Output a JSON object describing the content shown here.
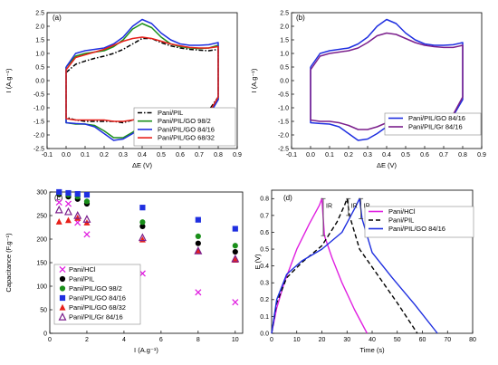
{
  "panels": [
    {
      "panel_label": "(a)",
      "type": "line",
      "xlabel": "ΔE (V)",
      "ylabel": "I (A.g⁻¹)",
      "xlim": [
        -0.1,
        0.9
      ],
      "ylim": [
        -2.5,
        2.5
      ],
      "xticks": [
        -0.1,
        0.0,
        0.1,
        0.2,
        0.3,
        0.4,
        0.5,
        0.6,
        0.7,
        0.8,
        0.9
      ],
      "xtick_labels": [
        "-0.1",
        "0.0",
        "0.1",
        "0.2",
        "0.3",
        "0.4",
        "0.5",
        "0.6",
        "0.7",
        "0.8",
        "0.9"
      ],
      "yticks": [
        -2.5,
        -2.0,
        -1.5,
        -1.0,
        -0.5,
        0.0,
        0.5,
        1.0,
        1.5,
        2.0,
        2.5
      ],
      "ytick_labels": [
        "-2.5",
        "-2.0",
        "-1.5",
        "-1.0",
        "-0.5",
        "0.0",
        "0.5",
        "1.0",
        "1.5",
        "2.0",
        "2.5"
      ],
      "legend_position": "lower-right",
      "series": [
        {
          "name": "Pani/PIL",
          "color": "#000000",
          "dash": "5 2 1.5 2",
          "anodic_x": [
            0,
            0.05,
            0.1,
            0.15,
            0.2,
            0.25,
            0.3,
            0.35,
            0.4,
            0.45,
            0.5,
            0.55,
            0.6,
            0.65,
            0.7,
            0.75,
            0.8
          ],
          "anodic_y": [
            0.3,
            0.6,
            0.72,
            0.82,
            0.9,
            1.0,
            1.15,
            1.35,
            1.55,
            1.55,
            1.4,
            1.28,
            1.2,
            1.15,
            1.12,
            1.1,
            1.15
          ],
          "cathodic_x": [
            0.8,
            0.75,
            0.7,
            0.65,
            0.6,
            0.55,
            0.5,
            0.45,
            0.4,
            0.35,
            0.3,
            0.25,
            0.2,
            0.15,
            0.1,
            0.05,
            0
          ],
          "cathodic_y": [
            -0.6,
            -1.1,
            -1.15,
            -1.15,
            -1.15,
            -1.15,
            -1.15,
            -1.2,
            -1.3,
            -1.45,
            -1.55,
            -1.5,
            -1.5,
            -1.5,
            -1.5,
            -1.45,
            -1.35
          ]
        },
        {
          "name": "Pani/PIL/GO 98/2",
          "color": "#1a8f1a",
          "dash": "",
          "anodic_x": [
            0,
            0.05,
            0.1,
            0.15,
            0.2,
            0.25,
            0.3,
            0.35,
            0.4,
            0.45,
            0.5,
            0.55,
            0.6,
            0.65,
            0.7,
            0.75,
            0.8
          ],
          "anodic_y": [
            0.5,
            0.9,
            1.0,
            1.05,
            1.1,
            1.25,
            1.5,
            1.9,
            2.1,
            1.95,
            1.6,
            1.35,
            1.25,
            1.2,
            1.18,
            1.2,
            1.3
          ],
          "cathodic_x": [
            0.8,
            0.75,
            0.7,
            0.65,
            0.6,
            0.55,
            0.5,
            0.45,
            0.4,
            0.35,
            0.3,
            0.25,
            0.2,
            0.15,
            0.1,
            0.05,
            0
          ],
          "cathodic_y": [
            -0.7,
            -1.25,
            -1.3,
            -1.3,
            -1.3,
            -1.35,
            -1.4,
            -1.5,
            -1.65,
            -1.9,
            -2.1,
            -2.1,
            -1.85,
            -1.65,
            -1.6,
            -1.6,
            -1.55
          ]
        },
        {
          "name": "Pani/PIL/GO 84/16",
          "color": "#1f2fe0",
          "dash": "",
          "anodic_x": [
            0,
            0.05,
            0.1,
            0.15,
            0.2,
            0.25,
            0.3,
            0.35,
            0.4,
            0.45,
            0.5,
            0.55,
            0.6,
            0.65,
            0.7,
            0.75,
            0.8
          ],
          "anodic_y": [
            0.5,
            1.0,
            1.1,
            1.15,
            1.2,
            1.35,
            1.6,
            2.0,
            2.25,
            2.1,
            1.75,
            1.5,
            1.35,
            1.3,
            1.3,
            1.32,
            1.4
          ],
          "cathodic_x": [
            0.8,
            0.75,
            0.7,
            0.65,
            0.6,
            0.55,
            0.5,
            0.45,
            0.4,
            0.35,
            0.3,
            0.25,
            0.2,
            0.15,
            0.1,
            0.05,
            0
          ],
          "cathodic_y": [
            -0.7,
            -1.3,
            -1.35,
            -1.35,
            -1.35,
            -1.4,
            -1.45,
            -1.55,
            -1.7,
            -1.95,
            -2.15,
            -2.2,
            -1.95,
            -1.7,
            -1.6,
            -1.58,
            -1.55
          ]
        },
        {
          "name": "Pani/PIL/GO 68/32",
          "color": "#e8201a",
          "dash": "",
          "anodic_x": [
            0,
            0.05,
            0.1,
            0.15,
            0.2,
            0.25,
            0.3,
            0.35,
            0.4,
            0.45,
            0.5,
            0.55,
            0.6,
            0.65,
            0.7,
            0.75,
            0.8
          ],
          "anodic_y": [
            0.4,
            0.85,
            0.95,
            1.05,
            1.15,
            1.3,
            1.45,
            1.55,
            1.6,
            1.55,
            1.45,
            1.35,
            1.28,
            1.22,
            1.2,
            1.2,
            1.25
          ],
          "cathodic_x": [
            0.8,
            0.75,
            0.7,
            0.65,
            0.6,
            0.55,
            0.5,
            0.45,
            0.4,
            0.35,
            0.3,
            0.25,
            0.2,
            0.15,
            0.1,
            0.05,
            0
          ],
          "cathodic_y": [
            -0.6,
            -1.2,
            -1.2,
            -1.2,
            -1.2,
            -1.25,
            -1.3,
            -1.35,
            -1.4,
            -1.45,
            -1.5,
            -1.5,
            -1.45,
            -1.45,
            -1.45,
            -1.45,
            -1.4
          ]
        }
      ]
    },
    {
      "panel_label": "(b)",
      "type": "line",
      "xlabel": "ΔE (V)",
      "ylabel": "I (A.g⁻¹)",
      "xlim": [
        -0.1,
        0.9
      ],
      "ylim": [
        -2.5,
        2.5
      ],
      "xticks": [
        -0.1,
        0.0,
        0.1,
        0.2,
        0.3,
        0.4,
        0.5,
        0.6,
        0.7,
        0.8,
        0.9
      ],
      "xtick_labels": [
        "-0.1",
        "0.0",
        "0.1",
        "0.2",
        "0.3",
        "0.4",
        "0.5",
        "0.6",
        "0.7",
        "0.8",
        "0.9"
      ],
      "yticks": [
        -2.5,
        -2.0,
        -1.5,
        -1.0,
        -0.5,
        0.0,
        0.5,
        1.0,
        1.5,
        2.0,
        2.5
      ],
      "ytick_labels": [
        "-2.5",
        "-2.0",
        "-1.5",
        "-1.0",
        "-0.5",
        "0.0",
        "0.5",
        "1.0",
        "1.5",
        "2.0",
        "2.5"
      ],
      "legend_position": "lower-right",
      "series": [
        {
          "name": "Pani/PIL/GO 84/16",
          "color": "#1f2fe0",
          "dash": "",
          "anodic_x": [
            0,
            0.05,
            0.1,
            0.15,
            0.2,
            0.25,
            0.3,
            0.35,
            0.4,
            0.45,
            0.5,
            0.55,
            0.6,
            0.65,
            0.7,
            0.75,
            0.8
          ],
          "anodic_y": [
            0.5,
            1.0,
            1.1,
            1.15,
            1.2,
            1.35,
            1.6,
            2.0,
            2.25,
            2.1,
            1.75,
            1.5,
            1.35,
            1.3,
            1.3,
            1.32,
            1.4
          ],
          "cathodic_x": [
            0.8,
            0.75,
            0.7,
            0.65,
            0.6,
            0.55,
            0.5,
            0.45,
            0.4,
            0.35,
            0.3,
            0.25,
            0.2,
            0.15,
            0.1,
            0.05,
            0
          ],
          "cathodic_y": [
            -0.7,
            -1.3,
            -1.35,
            -1.35,
            -1.35,
            -1.4,
            -1.45,
            -1.55,
            -1.7,
            -1.95,
            -2.15,
            -2.2,
            -1.95,
            -1.7,
            -1.6,
            -1.58,
            -1.55
          ]
        },
        {
          "name": "Pani/PIL/Gr 84/16",
          "color": "#7b1f8c",
          "dash": "",
          "anodic_x": [
            0,
            0.05,
            0.1,
            0.15,
            0.2,
            0.25,
            0.3,
            0.35,
            0.4,
            0.45,
            0.5,
            0.55,
            0.6,
            0.65,
            0.7,
            0.75,
            0.8
          ],
          "anodic_y": [
            0.4,
            0.9,
            1.0,
            1.05,
            1.1,
            1.2,
            1.4,
            1.65,
            1.75,
            1.7,
            1.55,
            1.4,
            1.3,
            1.25,
            1.22,
            1.22,
            1.3
          ],
          "cathodic_x": [
            0.8,
            0.75,
            0.7,
            0.65,
            0.6,
            0.55,
            0.5,
            0.45,
            0.4,
            0.35,
            0.3,
            0.25,
            0.2,
            0.15,
            0.1,
            0.05,
            0
          ],
          "cathodic_y": [
            -0.6,
            -1.25,
            -1.3,
            -1.3,
            -1.3,
            -1.3,
            -1.35,
            -1.45,
            -1.55,
            -1.7,
            -1.8,
            -1.8,
            -1.65,
            -1.55,
            -1.5,
            -1.5,
            -1.45
          ]
        }
      ]
    },
    {
      "panel_label": "(c)",
      "type": "scatter",
      "xlabel": "I (A.g⁻¹)",
      "ylabel": "Capacitance (F.g⁻¹)",
      "xlim": [
        0,
        10.4
      ],
      "ylim": [
        0,
        300
      ],
      "xticks": [
        0,
        2,
        4,
        6,
        8,
        10
      ],
      "xtick_labels": [
        "0",
        "2",
        "4",
        "6",
        "8",
        "10"
      ],
      "yticks": [
        0,
        50,
        100,
        150,
        200,
        250,
        300
      ],
      "ytick_labels": [
        "0",
        "50",
        "100",
        "150",
        "200",
        "250",
        "300"
      ],
      "legend_position": "lower-left",
      "series": [
        {
          "name": "Pani/HCl",
          "color": "#e020e0",
          "marker": "x",
          "x": [
            0.5,
            1,
            1.5,
            2,
            5,
            8,
            10
          ],
          "y": [
            278,
            275,
            235,
            210,
            127,
            87,
            66
          ]
        },
        {
          "name": "Pani/PIL",
          "color": "#000000",
          "marker": "circle",
          "x": [
            0.5,
            1,
            1.5,
            2,
            5,
            8,
            10
          ],
          "y": [
            295,
            290,
            285,
            275,
            227,
            191,
            173
          ]
        },
        {
          "name": "Pani/PIL/GO 98/2",
          "color": "#1a8f1a",
          "marker": "circle",
          "x": [
            0.5,
            1,
            1.5,
            2,
            5,
            8,
            10
          ],
          "y": [
            298,
            294,
            290,
            280,
            236,
            206,
            186
          ]
        },
        {
          "name": "Pani/PIL/GO 84/16",
          "color": "#1f2fe0",
          "marker": "square",
          "x": [
            0.5,
            1,
            1.5,
            2,
            5,
            8,
            10
          ],
          "y": [
            300,
            298,
            296,
            294,
            267,
            241,
            222
          ]
        },
        {
          "name": "Pani/PIL/GO 68/32",
          "color": "#e8201a",
          "marker": "triangle",
          "x": [
            0.5,
            1,
            1.5,
            2,
            5,
            8,
            10
          ],
          "y": [
            237,
            240,
            245,
            235,
            199,
            175,
            156
          ]
        },
        {
          "name": "Pani/PIL/Gr 84/16",
          "color": "#7b1f8c",
          "marker": "triangle-open",
          "x": [
            0.5,
            1,
            1.5,
            2,
            5,
            8,
            10
          ],
          "y": [
            262,
            258,
            250,
            242,
            203,
            175,
            158
          ]
        }
      ]
    },
    {
      "panel_label": "(d)",
      "type": "line",
      "xlabel": "Time (s)",
      "ylabel": "E (V)",
      "xlim": [
        0,
        80
      ],
      "ylim": [
        0,
        0.85
      ],
      "xticks": [
        0,
        10,
        20,
        30,
        40,
        50,
        60,
        70,
        80
      ],
      "xtick_labels": [
        "0",
        "10",
        "20",
        "30",
        "40",
        "50",
        "60",
        "70",
        "80"
      ],
      "yticks": [
        0.0,
        0.1,
        0.2,
        0.3,
        0.4,
        0.5,
        0.6,
        0.7,
        0.8
      ],
      "ytick_labels": [
        "0.0",
        "0.1",
        "0.2",
        "0.3",
        "0.4",
        "0.5",
        "0.6",
        "0.7",
        "0.8"
      ],
      "legend_position": "top-right",
      "annotations": [
        "IR",
        "IR",
        "IR"
      ],
      "series": [
        {
          "name": "Pani/HCl",
          "color": "#e020e0",
          "dash": "",
          "x": [
            0,
            2,
            5,
            10,
            15,
            19,
            20,
            21,
            24,
            28,
            33,
            38
          ],
          "y": [
            0.0,
            0.15,
            0.3,
            0.5,
            0.65,
            0.76,
            0.8,
            0.58,
            0.45,
            0.3,
            0.14,
            0.0
          ]
        },
        {
          "name": "Pani/PIL",
          "color": "#000000",
          "dash": "5 3",
          "x": [
            0,
            2,
            6,
            12,
            20,
            26,
            29,
            30,
            31,
            35,
            42,
            50,
            58
          ],
          "y": [
            0.0,
            0.18,
            0.33,
            0.42,
            0.52,
            0.66,
            0.76,
            0.8,
            0.7,
            0.5,
            0.35,
            0.18,
            0.0
          ]
        },
        {
          "name": "Pani/PIL/GO 84/16",
          "color": "#1f2fe0",
          "dash": "",
          "x": [
            0,
            2,
            6,
            12,
            20,
            28,
            33,
            35,
            36,
            40,
            48,
            57,
            66
          ],
          "y": [
            0.0,
            0.2,
            0.35,
            0.43,
            0.5,
            0.6,
            0.74,
            0.8,
            0.68,
            0.48,
            0.33,
            0.17,
            0.0
          ]
        }
      ]
    }
  ],
  "chart_data": [
    {
      "panel": "(a)",
      "type": "line",
      "xlabel": "ΔE (V)",
      "ylabel": "I (A.g⁻¹)",
      "xlim": [
        -0.1,
        0.9
      ],
      "ylim": [
        -2.5,
        2.5
      ],
      "series": [
        "Pani/PIL",
        "Pani/PIL/GO 98/2",
        "Pani/PIL/GO 84/16",
        "Pani/PIL/GO 68/32"
      ]
    },
    {
      "panel": "(b)",
      "type": "line",
      "xlabel": "ΔE (V)",
      "ylabel": "I (A.g⁻¹)",
      "xlim": [
        -0.1,
        0.9
      ],
      "ylim": [
        -2.5,
        2.5
      ],
      "series": [
        "Pani/PIL/GO 84/16",
        "Pani/PIL/Gr 84/16"
      ]
    },
    {
      "panel": "(c)",
      "type": "scatter",
      "xlabel": "I (A.g⁻¹)",
      "ylabel": "Capacitance (F.g⁻¹)",
      "xlim": [
        0,
        10.4
      ],
      "ylim": [
        0,
        300
      ],
      "series": [
        "Pani/HCl",
        "Pani/PIL",
        "Pani/PIL/GO 98/2",
        "Pani/PIL/GO 84/16",
        "Pani/PIL/GO 68/32",
        "Pani/PIL/Gr 84/16"
      ]
    },
    {
      "panel": "(d)",
      "type": "line",
      "xlabel": "Time (s)",
      "ylabel": "E (V)",
      "xlim": [
        0,
        80
      ],
      "ylim": [
        0,
        0.85
      ],
      "series": [
        "Pani/HCl",
        "Pani/PIL",
        "Pani/PIL/GO 84/16"
      ]
    }
  ]
}
